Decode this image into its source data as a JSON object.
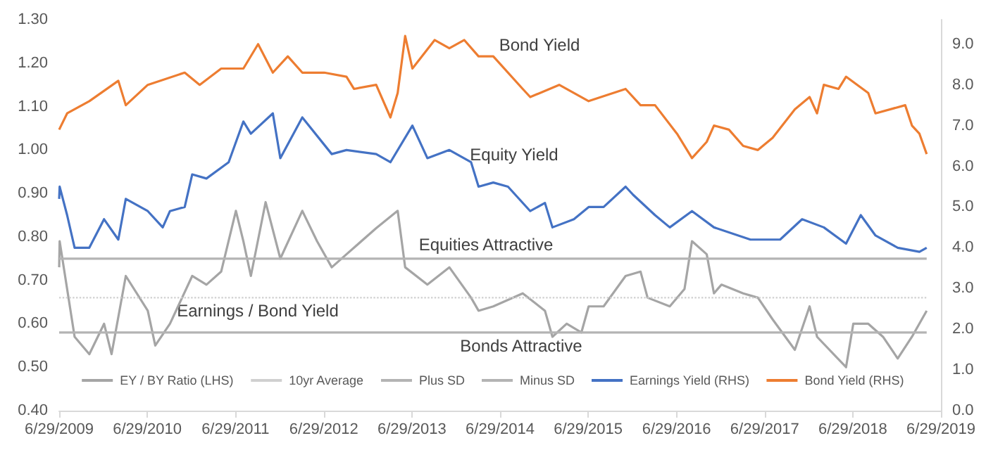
{
  "chart_data": {
    "type": "line",
    "marker": "none",
    "grid": false,
    "legend": "bottom",
    "xlim": [
      "2009-06-29",
      "2019-06-29"
    ],
    "xticks": [
      {
        "value": "2009-06-29",
        "label": "6/29/2009"
      },
      {
        "value": "2010-06-29",
        "label": "6/29/2010"
      },
      {
        "value": "2011-06-29",
        "label": "6/29/2011"
      },
      {
        "value": "2012-06-29",
        "label": "6/29/2012"
      },
      {
        "value": "2013-06-29",
        "label": "6/29/2013"
      },
      {
        "value": "2014-06-29",
        "label": "6/29/2014"
      },
      {
        "value": "2015-06-29",
        "label": "6/29/2015"
      },
      {
        "value": "2016-06-29",
        "label": "6/29/2016"
      },
      {
        "value": "2017-06-29",
        "label": "6/29/2017"
      },
      {
        "value": "2018-06-29",
        "label": "6/29/2018"
      },
      {
        "value": "2019-06-29",
        "label": "6/29/2019"
      }
    ],
    "ylim": [
      0.4,
      1.3
    ],
    "yticks": [
      {
        "value": 0.4,
        "label": "0.40"
      },
      {
        "value": 0.5,
        "label": "0.50"
      },
      {
        "value": 0.6,
        "label": "0.60"
      },
      {
        "value": 0.7,
        "label": "0.70"
      },
      {
        "value": 0.8,
        "label": "0.80"
      },
      {
        "value": 0.9,
        "label": "0.90"
      },
      {
        "value": 1.0,
        "label": "1.00"
      },
      {
        "value": 1.1,
        "label": "1.10"
      },
      {
        "value": 1.2,
        "label": "1.20"
      },
      {
        "value": 1.3,
        "label": "1.30"
      }
    ],
    "y2lim": [
      0,
      9.6
    ],
    "y2ticks": [
      {
        "value": 0,
        "label": "0.0"
      },
      {
        "value": 1,
        "label": "1.0"
      },
      {
        "value": 2,
        "label": "2.0"
      },
      {
        "value": 3,
        "label": "3.0"
      },
      {
        "value": 4,
        "label": "4.0"
      },
      {
        "value": 5,
        "label": "5.0"
      },
      {
        "value": 6,
        "label": "6.0"
      },
      {
        "value": 7,
        "label": "7.0"
      },
      {
        "value": 8,
        "label": "8.0"
      },
      {
        "value": 9,
        "label": "9.0"
      }
    ],
    "series": [
      {
        "name": "EY / BY Ratio (LHS)",
        "color": "#a5a5a5",
        "x": [
          "2009-06-29",
          "2009-07",
          "2009-08",
          "2009-09",
          "2009-11",
          "2010-01",
          "2010-02",
          "2010-04",
          "2010-07",
          "2010-08",
          "2010-10",
          "2011-01",
          "2011-03",
          "2011-05",
          "2011-07",
          "2011-08",
          "2011-09",
          "2011-11",
          "2012-01",
          "2012-04",
          "2012-06",
          "2012-08",
          "2012-10",
          "2013-02",
          "2013-05",
          "2013-06",
          "2013-09",
          "2013-12",
          "2014-03",
          "2014-04",
          "2014-06",
          "2014-10",
          "2015-01",
          "2015-02",
          "2015-04",
          "2015-06",
          "2015-07",
          "2015-09",
          "2015-12",
          "2016-02",
          "2016-03",
          "2016-06",
          "2016-08",
          "2016-09",
          "2016-11",
          "2016-12",
          "2017-01",
          "2017-04",
          "2017-06",
          "2017-08",
          "2017-11",
          "2018-01",
          "2018-02",
          "2018-06",
          "2018-07",
          "2018-09",
          "2018-11",
          "2019-01",
          "2019-03",
          "2019-05"
        ],
        "values": [
          0.73,
          0.79,
          0.68,
          0.57,
          0.53,
          0.6,
          0.53,
          0.71,
          0.63,
          0.55,
          0.6,
          0.71,
          0.69,
          0.72,
          0.86,
          0.79,
          0.71,
          0.88,
          0.75,
          0.86,
          0.79,
          0.73,
          0.76,
          0.82,
          0.86,
          0.73,
          0.69,
          0.73,
          0.66,
          0.63,
          0.64,
          0.67,
          0.63,
          0.57,
          0.6,
          0.58,
          0.64,
          0.64,
          0.71,
          0.72,
          0.66,
          0.64,
          0.68,
          0.79,
          0.76,
          0.67,
          0.69,
          0.67,
          0.66,
          0.61,
          0.54,
          0.64,
          0.57,
          0.5,
          0.6,
          0.6,
          0.57,
          0.52,
          0.57,
          0.63
        ]
      },
      {
        "name": "10yr Average",
        "color": "#d0d0d0",
        "line_style": "dotted",
        "x": [
          "2009-06-29",
          "2019-05"
        ],
        "values": [
          0.66,
          0.66
        ]
      },
      {
        "name": "Plus SD",
        "color": "#b4b4b4",
        "x": [
          "2009-06-29",
          "2019-05"
        ],
        "values": [
          0.75,
          0.75
        ]
      },
      {
        "name": "Minus SD",
        "color": "#b4b4b4",
        "x": [
          "2009-06-29",
          "2019-05"
        ],
        "values": [
          0.58,
          0.58
        ]
      },
      {
        "name": "Earnings Yield (RHS)",
        "color": "#4472c4",
        "axis": "y2",
        "x": [
          "2009-06-29",
          "2009-07",
          "2009-08",
          "2009-09",
          "2009-11",
          "2010-01",
          "2010-03",
          "2010-04",
          "2010-07",
          "2010-09",
          "2010-10",
          "2010-12",
          "2011-01",
          "2011-03",
          "2011-06",
          "2011-08",
          "2011-09",
          "2011-12",
          "2012-01",
          "2012-04",
          "2012-08",
          "2012-10",
          "2013-02",
          "2013-04",
          "2013-07",
          "2013-09",
          "2013-12",
          "2014-03",
          "2014-04",
          "2014-06",
          "2014-08",
          "2014-11",
          "2015-01",
          "2015-02",
          "2015-05",
          "2015-07",
          "2015-09",
          "2015-12",
          "2016-01",
          "2016-04",
          "2016-06",
          "2016-09",
          "2016-12",
          "2017-05",
          "2017-09",
          "2017-12",
          "2018-03",
          "2018-06",
          "2018-08",
          "2018-10",
          "2019-01",
          "2019-04",
          "2019-05"
        ],
        "values": [
          5.2,
          5.5,
          4.8,
          4.0,
          4.0,
          4.7,
          4.2,
          5.2,
          4.9,
          4.5,
          4.9,
          5.0,
          5.8,
          5.7,
          6.1,
          7.1,
          6.8,
          7.3,
          6.2,
          7.2,
          6.3,
          6.4,
          6.3,
          6.1,
          7.0,
          6.2,
          6.4,
          6.1,
          5.5,
          5.6,
          5.5,
          4.9,
          5.1,
          4.5,
          4.7,
          5.0,
          5.0,
          5.5,
          5.3,
          4.8,
          4.5,
          4.9,
          4.5,
          4.2,
          4.2,
          4.7,
          4.5,
          4.1,
          4.8,
          4.3,
          4.0,
          3.9,
          4.0
        ]
      },
      {
        "name": "Bond Yield (RHS)",
        "color": "#ed7d31",
        "axis": "y2",
        "x": [
          "2009-06-29",
          "2009-08",
          "2009-11",
          "2010-03",
          "2010-04",
          "2010-07",
          "2010-12",
          "2011-02",
          "2011-05",
          "2011-08",
          "2011-10",
          "2011-12",
          "2012-02",
          "2012-04",
          "2012-07",
          "2012-10",
          "2012-11",
          "2013-02",
          "2013-04",
          "2013-05",
          "2013-06",
          "2013-07",
          "2013-10",
          "2013-12",
          "2014-02",
          "2014-04",
          "2014-06",
          "2014-10",
          "2014-11",
          "2015-03",
          "2015-07",
          "2015-12",
          "2016-02",
          "2016-04",
          "2016-07",
          "2016-09",
          "2016-11",
          "2016-12",
          "2017-02",
          "2017-04",
          "2017-06",
          "2017-08",
          "2017-11",
          "2018-01",
          "2018-02",
          "2018-03",
          "2018-05",
          "2018-06",
          "2018-09",
          "2018-10",
          "2019-02",
          "2019-03",
          "2019-04",
          "2019-05"
        ],
        "values": [
          6.9,
          7.3,
          7.6,
          8.1,
          7.5,
          8.0,
          8.3,
          8.0,
          8.4,
          8.4,
          9.0,
          8.3,
          8.7,
          8.3,
          8.3,
          8.2,
          7.9,
          8.0,
          7.2,
          7.8,
          9.2,
          8.4,
          9.1,
          8.9,
          9.1,
          8.7,
          8.7,
          7.9,
          7.7,
          8.0,
          7.6,
          7.9,
          7.5,
          7.5,
          6.8,
          6.2,
          6.6,
          7.0,
          6.9,
          6.5,
          6.4,
          6.7,
          7.4,
          7.7,
          7.3,
          8.0,
          7.9,
          8.2,
          7.8,
          7.3,
          7.5,
          7.0,
          6.8,
          6.3
        ]
      }
    ],
    "annotations": [
      "Bond Yield",
      "Equity Yield",
      "Equities Attractive",
      "Earnings / Bond Yield",
      "Bonds Attractive"
    ]
  }
}
